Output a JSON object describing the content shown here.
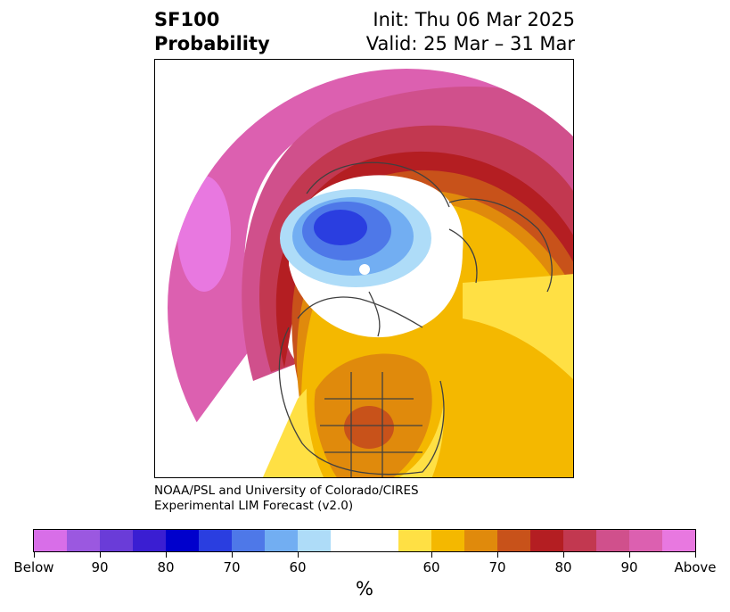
{
  "header": {
    "product": "SF100",
    "subtitle": "Probability",
    "init": "Init: Thu 06 Mar 2025",
    "valid": "Valid: 25 Mar – 31 Mar"
  },
  "credit": {
    "line1": "NOAA/PSL and University of Colorado/CIRES",
    "line2": "Experimental LIM Forecast (v2.0)"
  },
  "colorbar": {
    "colors": [
      "#d86ee8",
      "#9b58e0",
      "#6a3cd8",
      "#3a1ed2",
      "#0000cc",
      "#2a3ee0",
      "#4e78e8",
      "#72aef2",
      "#aedcf8",
      "#ffffff",
      "#ffe044",
      "#f4b800",
      "#e08a0c",
      "#c8521a",
      "#b41e22",
      "#c23850",
      "#d0508c",
      "#dc60b0",
      "#e878e0"
    ],
    "labels": [
      "Below",
      "90",
      "80",
      "70",
      "60",
      "60",
      "70",
      "80",
      "90",
      "Above"
    ],
    "unit": "%"
  }
}
